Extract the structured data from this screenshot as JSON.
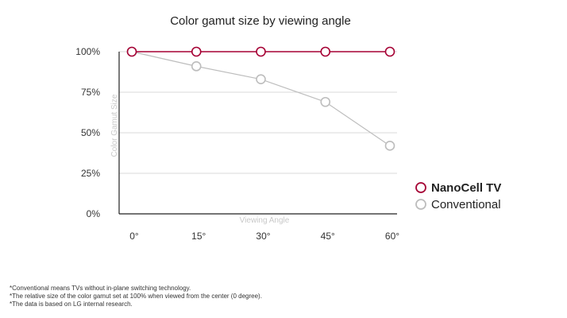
{
  "chart_data": {
    "type": "line",
    "title": "Color gamut size by viewing angle",
    "xlabel": "Viewing Angle",
    "ylabel": "Color Gamut Size",
    "categories": [
      "0°",
      "15°",
      "30°",
      "45°",
      "60°"
    ],
    "ytick_labels": [
      "0%",
      "25%",
      "50%",
      "75%",
      "100%"
    ],
    "ylim": [
      0,
      100
    ],
    "grid": true,
    "legend_position": "right",
    "series": [
      {
        "name": "NanoCell TV",
        "values": [
          100,
          100,
          100,
          100,
          100
        ],
        "color": "#a50034"
      },
      {
        "name": "Conventional",
        "values": [
          100,
          91,
          83,
          69,
          42
        ],
        "color": "#bdbdbd"
      }
    ]
  },
  "footnotes": [
    "*Conventional means TVs without in-plane switching technology.",
    "*The relative size of the color gamut set at 100% when viewed from the center (0 degree).",
    "*The data is based on LG internal research."
  ]
}
